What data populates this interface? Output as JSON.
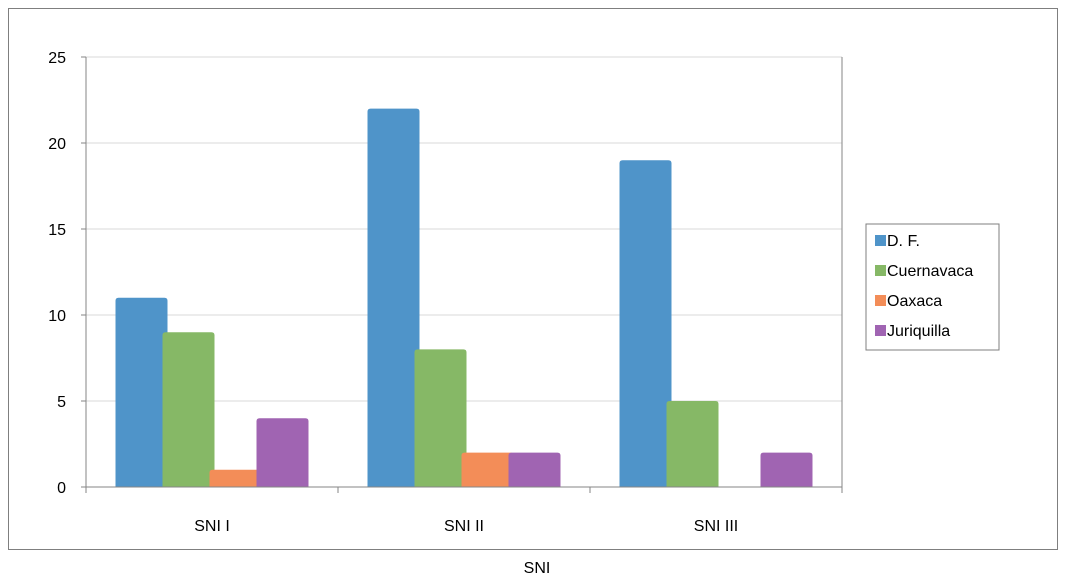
{
  "chart_data": {
    "type": "bar",
    "xlabel": "SNI",
    "ylabel": "",
    "title": "",
    "categories": [
      "SNI I",
      "SNI II",
      "SNI III"
    ],
    "series": [
      {
        "name": "D. F.",
        "color": "#4f94c9",
        "values": [
          11,
          22,
          19
        ]
      },
      {
        "name": "Cuernavaca",
        "color": "#86b866",
        "values": [
          9,
          8,
          5
        ]
      },
      {
        "name": "Oaxaca",
        "color": "#f38d58",
        "values": [
          1,
          2,
          0
        ]
      },
      {
        "name": "Juriquilla",
        "color": "#a064b2",
        "values": [
          4,
          2,
          2
        ]
      }
    ],
    "ylim": [
      0,
      25
    ],
    "yticks": [
      0,
      5,
      10,
      15,
      20,
      25
    ],
    "grid": true,
    "legend_position": "right"
  }
}
